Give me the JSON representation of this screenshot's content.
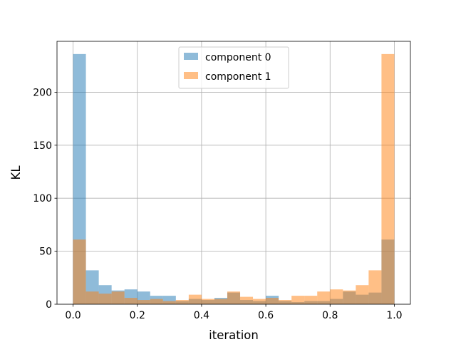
{
  "chart_data": {
    "type": "bar",
    "title": "",
    "xlabel": "iteration",
    "ylabel": "KL",
    "xlim": [
      -0.05,
      1.05
    ],
    "ylim": [
      0,
      248
    ],
    "xticks": [
      0.0,
      0.2,
      0.4,
      0.6,
      0.8,
      1.0
    ],
    "xtick_labels": [
      "0.0",
      "0.2",
      "0.4",
      "0.6",
      "0.8",
      "1.0"
    ],
    "yticks": [
      0,
      50,
      100,
      150,
      200
    ],
    "ytick_labels": [
      "0",
      "50",
      "100",
      "150",
      "200"
    ],
    "grid": true,
    "legend_position": "top-center",
    "bin_edges": [
      0.0,
      0.04,
      0.08,
      0.12,
      0.16,
      0.2,
      0.24,
      0.28,
      0.32,
      0.36,
      0.4,
      0.44,
      0.48,
      0.52,
      0.56,
      0.6,
      0.64,
      0.68,
      0.72,
      0.76,
      0.8,
      0.84,
      0.88,
      0.92,
      0.96,
      1.0
    ],
    "series": [
      {
        "name": "component 0",
        "color": "#1f77b4",
        "values": [
          236,
          32,
          18,
          13,
          14,
          12,
          8,
          8,
          3,
          5,
          4,
          6,
          11,
          4,
          3,
          8,
          3,
          2,
          3,
          3,
          5,
          12,
          9,
          11,
          61
        ]
      },
      {
        "name": "component 1",
        "color": "#ff7f0e",
        "values": [
          61,
          12,
          10,
          12,
          6,
          4,
          5,
          3,
          4,
          9,
          5,
          5,
          12,
          7,
          5,
          6,
          4,
          8,
          8,
          12,
          14,
          13,
          18,
          32,
          236
        ]
      }
    ]
  }
}
